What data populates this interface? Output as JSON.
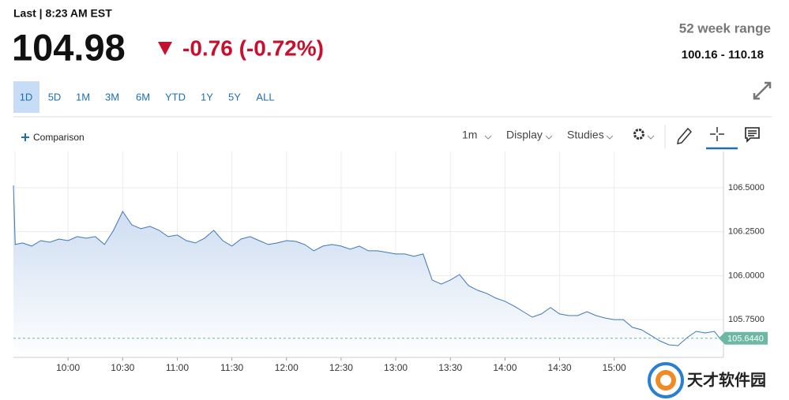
{
  "header": {
    "last_label": "Last | 8:23 AM EST",
    "price": "104.98",
    "change": "-0.76 (-0.72%)",
    "range_title": "52 week range",
    "range": "100.16 - 110.18"
  },
  "tabs": [
    "1D",
    "5D",
    "1M",
    "3M",
    "6M",
    "YTD",
    "1Y",
    "5Y",
    "ALL"
  ],
  "toolbar": {
    "comparison": "Comparison",
    "interval": "1m",
    "display": "Display",
    "studies": "Studies"
  },
  "watermark": "天才软件园",
  "chart_data": {
    "type": "area",
    "color": "#3d78b5",
    "fill": "#c3d6ee",
    "x": [
      "9:30",
      "9:31",
      "9:35",
      "9:40",
      "9:45",
      "9:50",
      "9:55",
      "10:00",
      "10:05",
      "10:10",
      "10:15",
      "10:20",
      "10:25",
      "10:30",
      "10:35",
      "10:40",
      "10:45",
      "10:50",
      "10:55",
      "11:00",
      "11:05",
      "11:10",
      "11:15",
      "11:20",
      "11:25",
      "11:30",
      "11:35",
      "11:40",
      "11:45",
      "11:50",
      "11:55",
      "12:00",
      "12:05",
      "12:10",
      "12:15",
      "12:20",
      "12:25",
      "12:30",
      "12:35",
      "12:40",
      "12:45",
      "12:50",
      "12:55",
      "13:00",
      "13:05",
      "13:10",
      "13:15",
      "13:20",
      "13:25",
      "13:30",
      "13:35",
      "13:40",
      "13:45",
      "13:50",
      "13:55",
      "14:00",
      "14:05",
      "14:10",
      "14:15",
      "14:20",
      "14:25",
      "14:30",
      "14:35",
      "14:40",
      "14:45",
      "14:50",
      "14:55",
      "15:00",
      "15:05",
      "15:10",
      "15:15",
      "15:20",
      "15:25",
      "15:30",
      "15:35",
      "15:40",
      "15:45",
      "15:50",
      "15:55",
      "15:58"
    ],
    "values": [
      106.513,
      106.177,
      106.186,
      106.168,
      106.199,
      106.19,
      106.208,
      106.199,
      106.222,
      106.213,
      106.222,
      106.177,
      106.258,
      106.365,
      106.289,
      106.267,
      106.28,
      106.258,
      106.222,
      106.231,
      106.199,
      106.186,
      106.213,
      106.258,
      106.199,
      106.168,
      106.208,
      106.222,
      106.199,
      106.177,
      106.186,
      106.199,
      106.195,
      106.177,
      106.141,
      106.168,
      106.177,
      106.168,
      106.15,
      106.168,
      106.141,
      106.141,
      106.132,
      106.123,
      106.123,
      106.11,
      106.123,
      105.975,
      105.952,
      105.975,
      106.006,
      105.943,
      105.917,
      105.899,
      105.872,
      105.854,
      105.827,
      105.795,
      105.764,
      105.782,
      105.818,
      105.782,
      105.773,
      105.773,
      105.795,
      105.773,
      105.759,
      105.75,
      105.75,
      105.706,
      105.692,
      105.661,
      105.629,
      105.607,
      105.602,
      105.647,
      105.683,
      105.674,
      105.683,
      105.644
    ],
    "last_marker": {
      "value": 105.644,
      "label": "105.6440",
      "color": "#6cb8a4"
    },
    "xlim": [
      "9:30",
      "16:00"
    ],
    "xticks": [
      "10:00",
      "10:30",
      "11:00",
      "11:30",
      "12:00",
      "12:30",
      "13:00",
      "13:30",
      "14:00",
      "14:30",
      "15:00"
    ],
    "ylim": [
      105.535,
      106.706
    ],
    "yticks": [
      {
        "value": 105.75,
        "label": "105.7500"
      },
      {
        "value": 106.0,
        "label": "106.0000"
      },
      {
        "value": 106.25,
        "label": "106.2500"
      },
      {
        "value": 106.5,
        "label": "106.5000"
      }
    ],
    "grid": true
  }
}
